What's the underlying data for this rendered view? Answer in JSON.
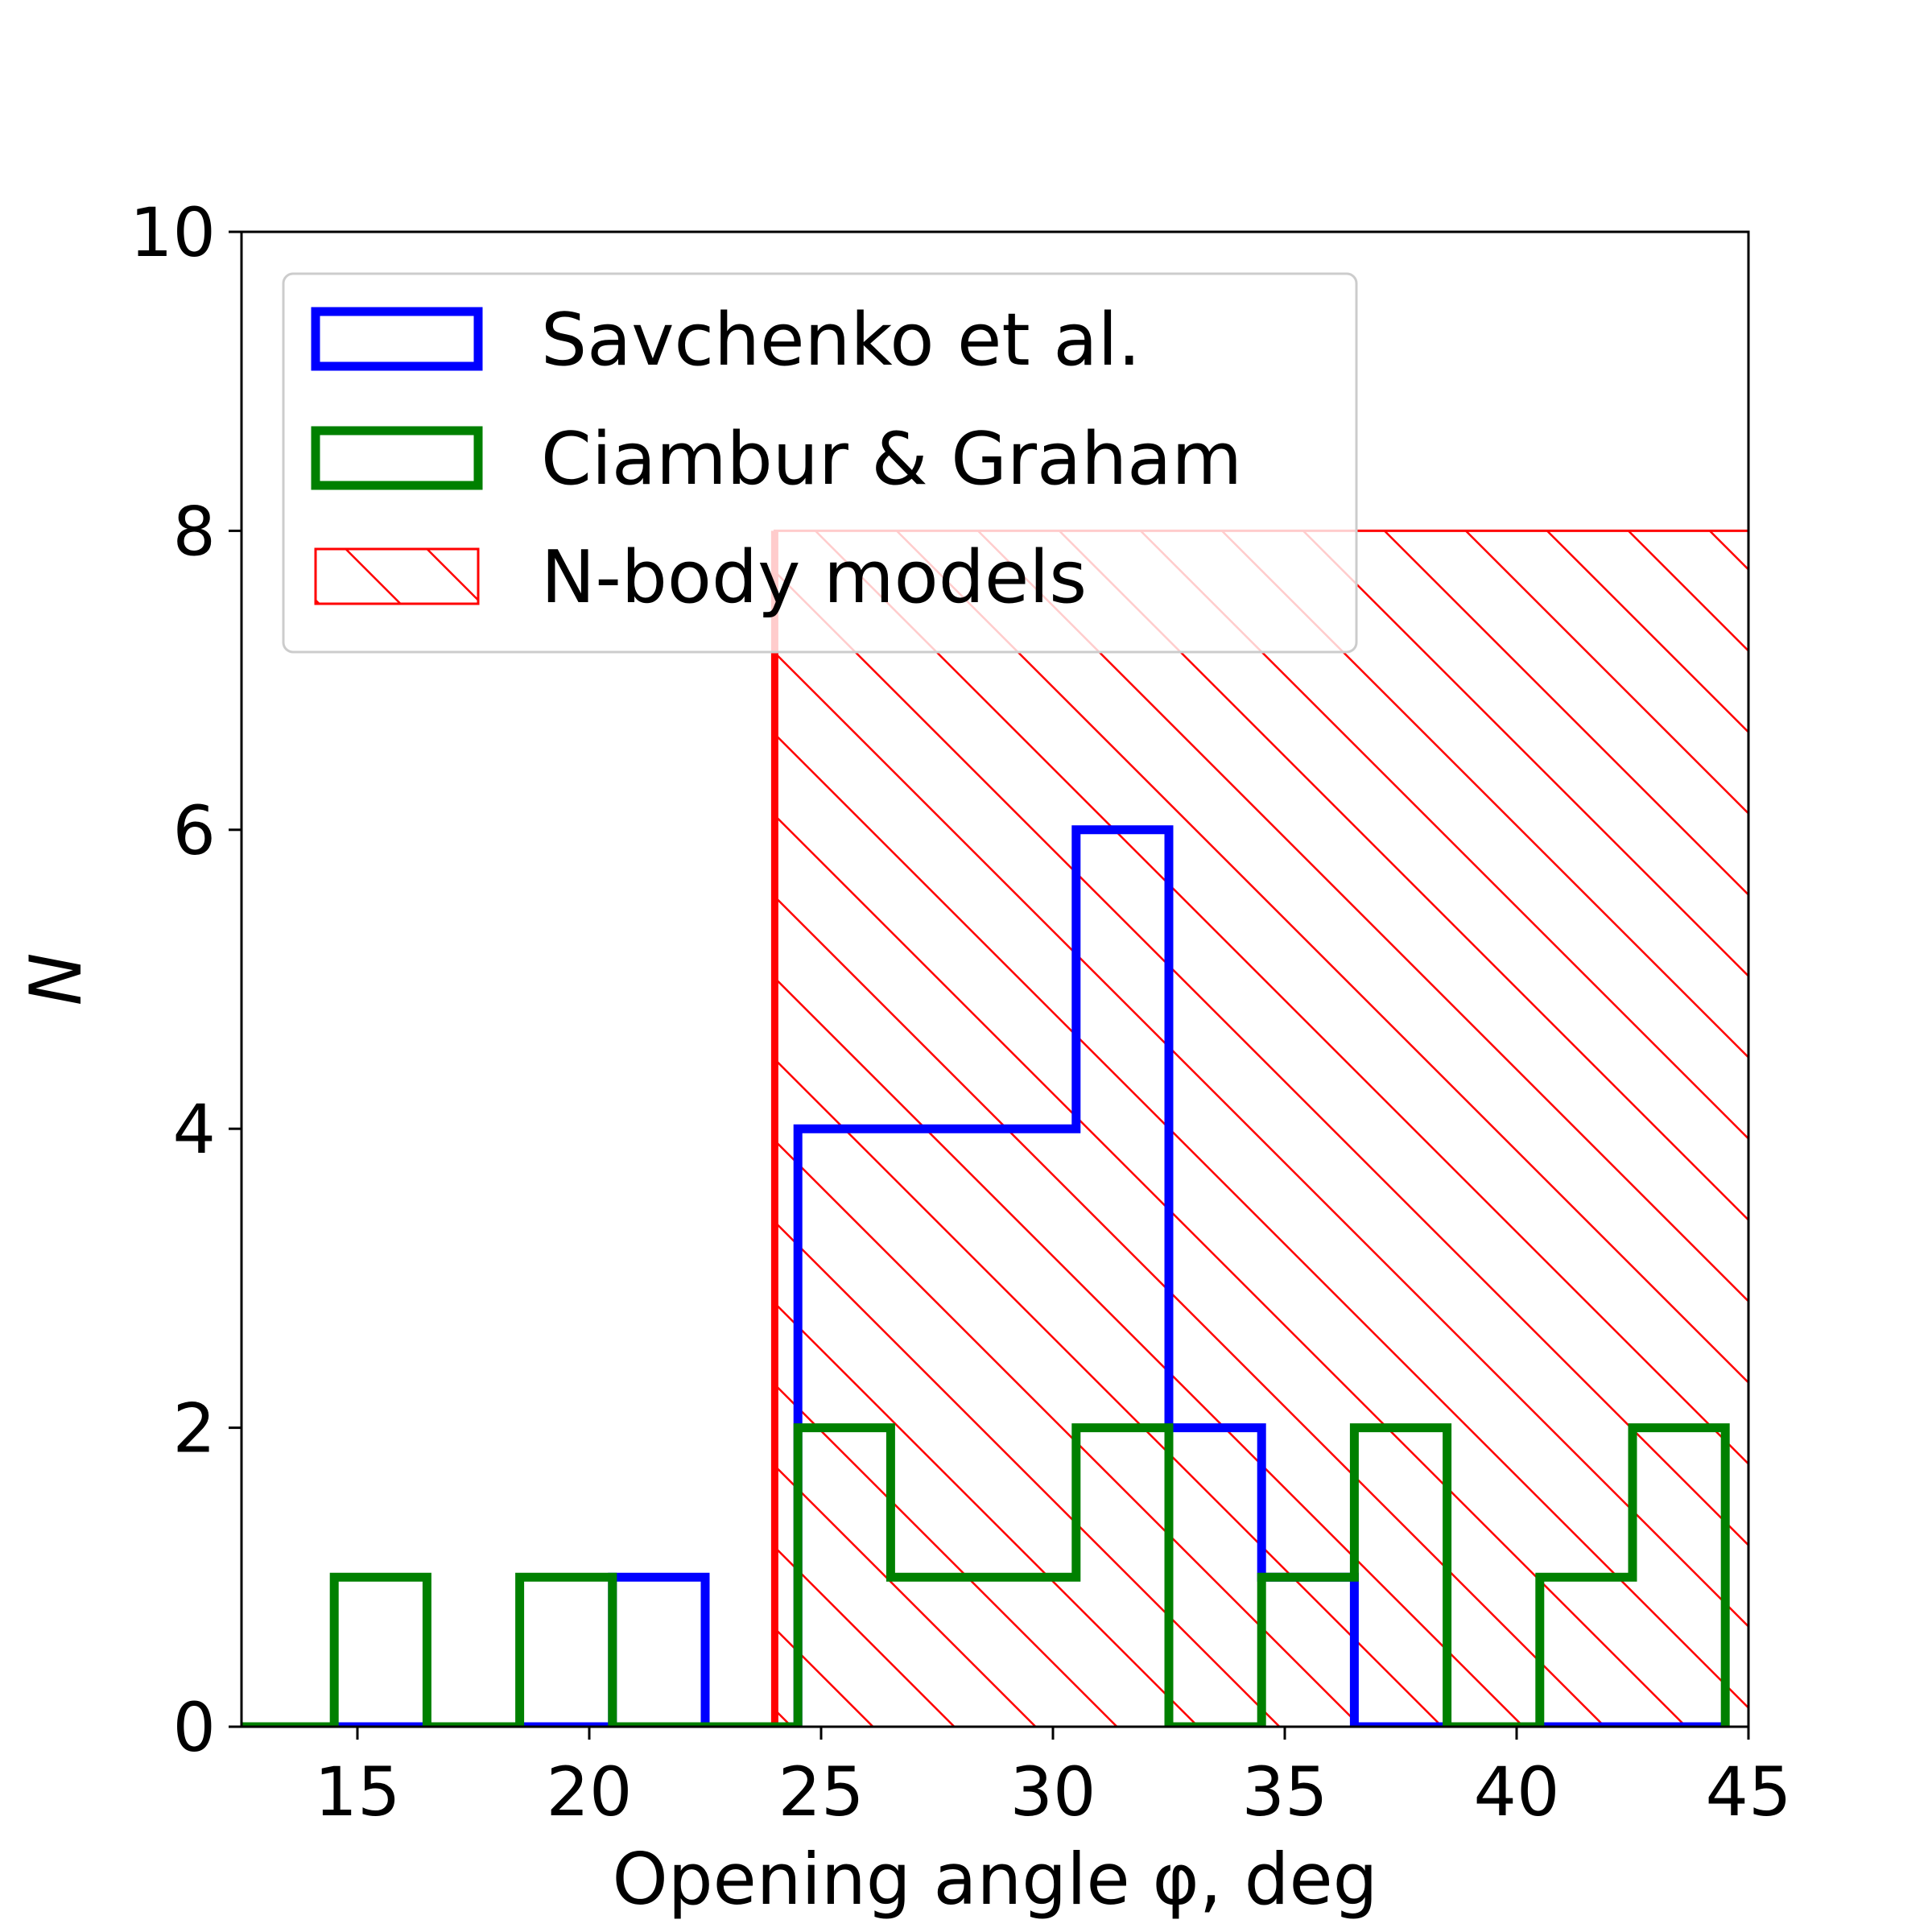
{
  "chart_data": {
    "type": "histogram",
    "title": "",
    "xlabel": "Opening angle φ, deg",
    "ylabel": "N",
    "xlim": [
      12.5,
      45
    ],
    "ylim": [
      0,
      10
    ],
    "xticks": [
      15,
      20,
      25,
      30,
      35,
      40,
      45
    ],
    "yticks": [
      0,
      2,
      4,
      6,
      8,
      10
    ],
    "grid": false,
    "legend_position": "top-left",
    "bin_edges": [
      12.5,
      14.5,
      16.5,
      18.5,
      20.5,
      22.5,
      24.5,
      26.5,
      28.5,
      30.5,
      32.5,
      34.5,
      36.5,
      38.5,
      40.5,
      42.5,
      44.5
    ],
    "series": [
      {
        "name": "Savchenko et al.",
        "color": "#0000ff",
        "style": "step",
        "counts": [
          0,
          0,
          0,
          0,
          1,
          0,
          4,
          4,
          4,
          6,
          2,
          1,
          0,
          0,
          0,
          0
        ]
      },
      {
        "name": "Ciambur & Graham",
        "color": "#008000",
        "style": "step",
        "counts": [
          0,
          1,
          0,
          1,
          0,
          0,
          2,
          1,
          1,
          2,
          0,
          1,
          2,
          0,
          1,
          2
        ]
      },
      {
        "name": "N-body models",
        "color": "#ff0000",
        "style": "hatched-region",
        "x_range": [
          24,
          45
        ],
        "y_value": 8
      }
    ]
  }
}
